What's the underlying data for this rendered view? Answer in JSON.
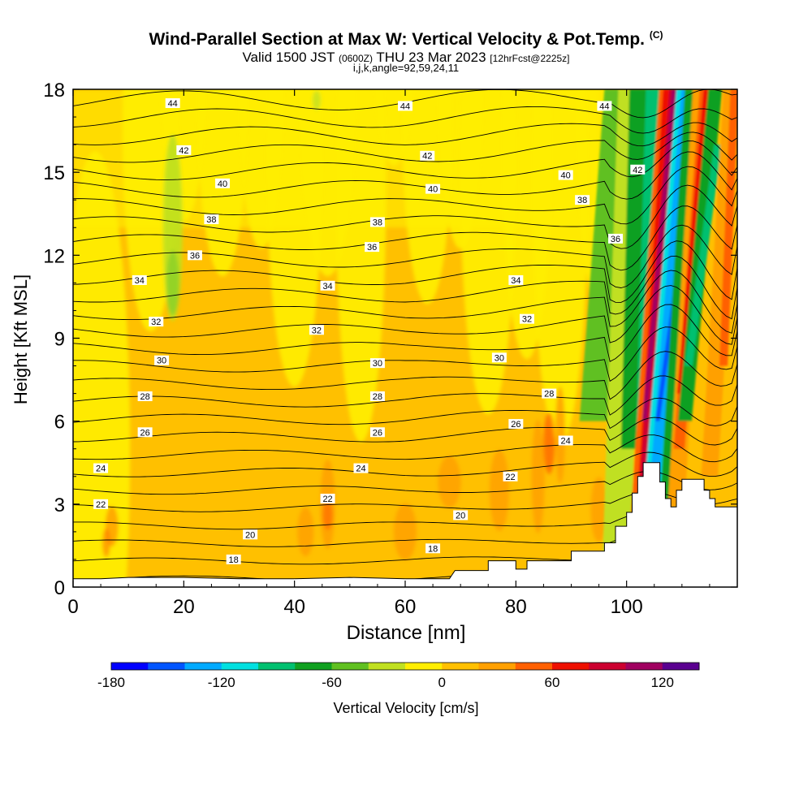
{
  "title": "Wind-Parallel Section at Max W: Vertical Velocity & Pot.Temp.",
  "title_tag": "(C)",
  "subtitle_main_a": "Valid 1500 JST",
  "subtitle_small_a": "(0600Z)",
  "subtitle_main_b": "THU 23 Mar 2023",
  "subtitle_small_b": "[12hrFcst@2225z]",
  "subtitle2": "i,j,k,angle=92,59,24,11",
  "colors": {
    "background": "#ffffff",
    "contour": "#000000",
    "terrain": "#ffffff",
    "colorbar": [
      "#0000ff",
      "#0055ff",
      "#00aaff",
      "#00e0e0",
      "#00c070",
      "#10a020",
      "#60c020",
      "#c0e020",
      "#ffee00",
      "#ffc000",
      "#ffa000",
      "#ff6000",
      "#ee1000",
      "#cc0030",
      "#a00060",
      "#5a0090"
    ]
  },
  "chart_data": {
    "type": "heatmap",
    "title": "Wind-Parallel Section at Max W: Vertical Velocity & Pot.Temp.",
    "xlabel": "Distance [nm]",
    "ylabel": "Height [Kft MSL]",
    "xlim": [
      0,
      120
    ],
    "ylim": [
      0,
      18
    ],
    "x_ticks": [
      0,
      20,
      40,
      60,
      80,
      100
    ],
    "y_ticks": [
      0,
      3,
      6,
      9,
      12,
      15,
      18
    ],
    "colorbar": {
      "label": "Vertical Velocity [cm/s]",
      "range": [
        -180,
        140
      ],
      "step": 20,
      "tick_values": [
        -180,
        -120,
        -60,
        0,
        60,
        120
      ]
    },
    "potential_temperature_contours_C": [
      18,
      20,
      22,
      24,
      26,
      28,
      30,
      32,
      34,
      36,
      38,
      40,
      42,
      44
    ],
    "theta_labels": [
      {
        "text": "44",
        "x": 18,
        "y": 17.5
      },
      {
        "text": "44",
        "x": 60,
        "y": 17.4
      },
      {
        "text": "44",
        "x": 96,
        "y": 17.4
      },
      {
        "text": "42",
        "x": 20,
        "y": 15.8
      },
      {
        "text": "42",
        "x": 64,
        "y": 15.6
      },
      {
        "text": "42",
        "x": 102,
        "y": 15.1
      },
      {
        "text": "40",
        "x": 27,
        "y": 14.6
      },
      {
        "text": "40",
        "x": 65,
        "y": 14.4
      },
      {
        "text": "40",
        "x": 89,
        "y": 14.9
      },
      {
        "text": "38",
        "x": 25,
        "y": 13.3
      },
      {
        "text": "38",
        "x": 55,
        "y": 13.2
      },
      {
        "text": "38",
        "x": 92,
        "y": 14.0
      },
      {
        "text": "36",
        "x": 22,
        "y": 12.0
      },
      {
        "text": "36",
        "x": 54,
        "y": 12.3
      },
      {
        "text": "36",
        "x": 98,
        "y": 12.6
      },
      {
        "text": "34",
        "x": 12,
        "y": 11.1
      },
      {
        "text": "34",
        "x": 46,
        "y": 10.9
      },
      {
        "text": "34",
        "x": 80,
        "y": 11.1
      },
      {
        "text": "32",
        "x": 15,
        "y": 9.6
      },
      {
        "text": "32",
        "x": 44,
        "y": 9.3
      },
      {
        "text": "32",
        "x": 82,
        "y": 9.7
      },
      {
        "text": "30",
        "x": 16,
        "y": 8.2
      },
      {
        "text": "30",
        "x": 55,
        "y": 8.1
      },
      {
        "text": "30",
        "x": 77,
        "y": 8.3
      },
      {
        "text": "28",
        "x": 13,
        "y": 6.9
      },
      {
        "text": "28",
        "x": 55,
        "y": 6.9
      },
      {
        "text": "28",
        "x": 86,
        "y": 7.0
      },
      {
        "text": "26",
        "x": 13,
        "y": 5.6
      },
      {
        "text": "26",
        "x": 55,
        "y": 5.6
      },
      {
        "text": "26",
        "x": 80,
        "y": 5.9
      },
      {
        "text": "24",
        "x": 5,
        "y": 4.3
      },
      {
        "text": "24",
        "x": 52,
        "y": 4.3
      },
      {
        "text": "24",
        "x": 89,
        "y": 5.3
      },
      {
        "text": "22",
        "x": 5,
        "y": 3.0
      },
      {
        "text": "22",
        "x": 46,
        "y": 3.2
      },
      {
        "text": "22",
        "x": 79,
        "y": 4.0
      },
      {
        "text": "20",
        "x": 32,
        "y": 1.9
      },
      {
        "text": "20",
        "x": 70,
        "y": 2.6
      },
      {
        "text": "18",
        "x": 29,
        "y": 1.0
      },
      {
        "text": "18",
        "x": 65,
        "y": 1.4
      }
    ],
    "terrain_profile": [
      [
        0,
        0.3
      ],
      [
        5,
        0.3
      ],
      [
        10,
        0.35
      ],
      [
        20,
        0.35
      ],
      [
        30,
        0.3
      ],
      [
        40,
        0.3
      ],
      [
        50,
        0.35
      ],
      [
        60,
        0.3
      ],
      [
        68,
        0.3
      ],
      [
        69,
        0.6
      ],
      [
        75,
        0.6
      ],
      [
        75,
        0.95
      ],
      [
        80,
        0.95
      ],
      [
        80,
        0.65
      ],
      [
        82,
        0.65
      ],
      [
        82,
        0.95
      ],
      [
        90,
        0.95
      ],
      [
        90,
        1.3
      ],
      [
        96,
        1.3
      ],
      [
        96,
        1.6
      ],
      [
        98,
        1.6
      ],
      [
        98,
        2.2
      ],
      [
        100,
        2.2
      ],
      [
        100,
        2.7
      ],
      [
        101,
        2.7
      ],
      [
        101,
        3.4
      ],
      [
        102,
        3.4
      ],
      [
        102,
        4.0
      ],
      [
        103,
        4.0
      ],
      [
        103,
        4.5
      ],
      [
        106,
        4.5
      ],
      [
        106,
        3.8
      ],
      [
        107,
        3.8
      ],
      [
        107,
        3.2
      ],
      [
        108,
        3.2
      ],
      [
        108,
        2.9
      ],
      [
        109,
        2.9
      ],
      [
        109,
        3.5
      ],
      [
        110,
        3.5
      ],
      [
        110,
        3.9
      ],
      [
        114,
        3.9
      ],
      [
        114,
        3.5
      ],
      [
        115,
        3.5
      ],
      [
        115,
        3.2
      ],
      [
        116,
        3.2
      ],
      [
        116,
        2.9
      ],
      [
        120,
        2.9
      ]
    ]
  }
}
